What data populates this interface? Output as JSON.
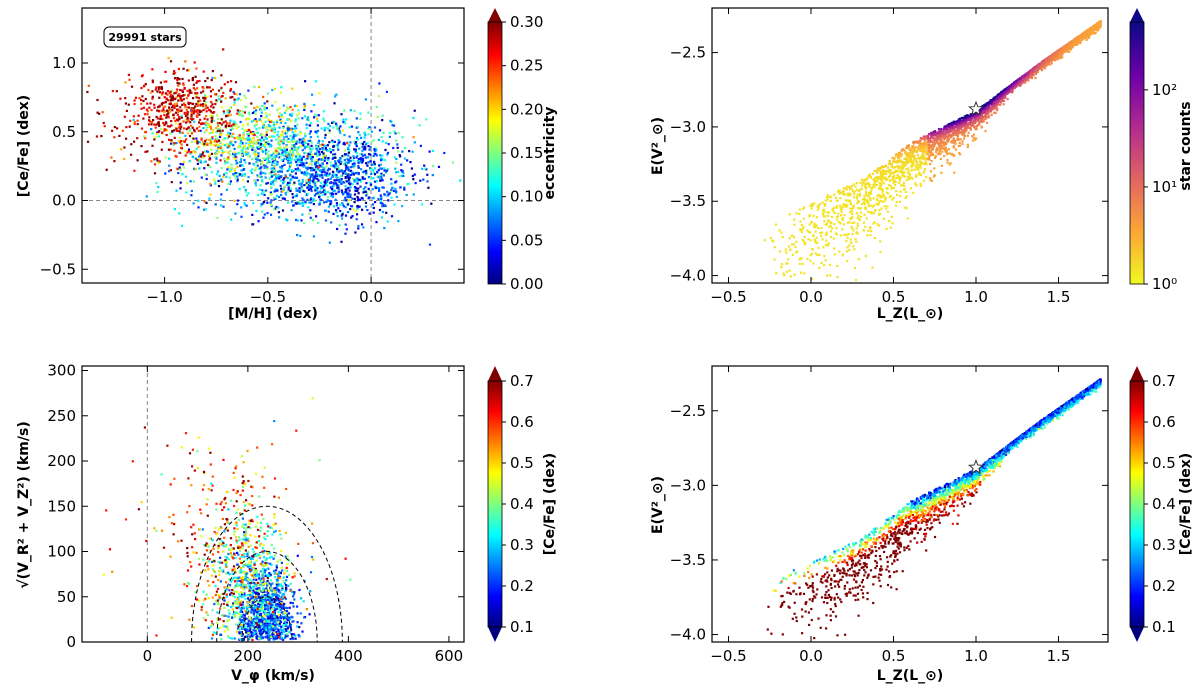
{
  "colors": {
    "jet": [
      "#00007f",
      "#0000ff",
      "#007fff",
      "#00ffff",
      "#7fff7f",
      "#ffff00",
      "#ff7f00",
      "#ff0000",
      "#7f0000"
    ],
    "plasma_r": [
      "#f0f921",
      "#fca636",
      "#e16462",
      "#b12a90",
      "#6a00a8",
      "#0d0887"
    ]
  },
  "chart_data": [
    {
      "id": "p1",
      "type": "scatter",
      "annotation": "29991 stars",
      "xlabel": "[M/H] (dex)",
      "ylabel": "[Ce/Fe] (dex)",
      "xlim": [
        -1.4,
        0.45
      ],
      "ylim": [
        -0.6,
        1.4
      ],
      "xticks": [
        -1.0,
        -0.5,
        0.0
      ],
      "xticklabels": [
        "−1.0",
        "−0.5",
        "0.0"
      ],
      "yticks": [
        -0.5,
        0.0,
        0.5,
        1.0
      ],
      "yticklabels": [
        "−0.5",
        "0.0",
        "0.5",
        "1.0"
      ],
      "reference_lines": {
        "x": 0.0,
        "y": 0.0
      },
      "colorbar": {
        "label": "eccentricity",
        "range": [
          0.0,
          0.3
        ],
        "ticks": [
          "0.00",
          "0.05",
          "0.10",
          "0.15",
          "0.20",
          "0.25",
          "0.30"
        ],
        "colormap": "jet"
      },
      "clusters": [
        {
          "x": -0.35,
          "y": 0.3,
          "sx": 0.28,
          "sy": 0.2,
          "c": 0.09,
          "sc": 0.04,
          "n": 1200
        },
        {
          "x": -0.15,
          "y": 0.15,
          "sx": 0.18,
          "sy": 0.15,
          "c": 0.05,
          "sc": 0.03,
          "n": 500
        },
        {
          "x": -0.6,
          "y": 0.45,
          "sx": 0.18,
          "sy": 0.15,
          "c": 0.16,
          "sc": 0.04,
          "n": 500
        },
        {
          "x": -0.9,
          "y": 0.68,
          "sx": 0.12,
          "sy": 0.14,
          "c": 0.27,
          "sc": 0.03,
          "n": 450
        },
        {
          "x": -1.05,
          "y": 0.55,
          "sx": 0.18,
          "sy": 0.2,
          "c": 0.28,
          "sc": 0.03,
          "n": 120
        }
      ]
    },
    {
      "id": "p2",
      "type": "scatter",
      "xlabel": "L_Z(L_⊙)",
      "ylabel": "E(V²_⊙)",
      "xlim": [
        -0.6,
        1.8
      ],
      "ylim": [
        -4.05,
        -2.2
      ],
      "xticks": [
        -0.5,
        0.0,
        0.5,
        1.0,
        1.5
      ],
      "xticklabels": [
        "−0.5",
        "0.0",
        "0.5",
        "1.0",
        "1.5"
      ],
      "yticks": [
        -4.0,
        -3.5,
        -3.0,
        -2.5
      ],
      "yticklabels": [
        "−4.0",
        "−3.5",
        "−3.0",
        "−2.5"
      ],
      "sun_marker": {
        "x": 1.0,
        "y": -2.88
      },
      "colorbar": {
        "label": "star counts",
        "range": [
          1,
          500
        ],
        "scale": "log",
        "ticks": [
          "10⁰",
          "10¹",
          "10²"
        ],
        "colormap": "plasma_r"
      },
      "envelope": [
        [
          -0.1,
          -3.55
        ],
        [
          0.3,
          -3.35
        ],
        [
          0.6,
          -3.1
        ],
        [
          1.0,
          -2.88
        ],
        [
          1.4,
          -2.55
        ],
        [
          1.75,
          -2.28
        ]
      ]
    },
    {
      "id": "p3",
      "type": "scatter",
      "xlabel": "V_φ (km/s)",
      "ylabel": "√(V_R² + V_Z²) (km/s)",
      "xlim": [
        -130,
        630
      ],
      "ylim": [
        0,
        305
      ],
      "xticks": [
        0,
        200,
        400,
        600
      ],
      "xticklabels": [
        "0",
        "200",
        "400",
        "600"
      ],
      "yticks": [
        0,
        50,
        100,
        150,
        200,
        250,
        300
      ],
      "yticklabels": [
        "0",
        "50",
        "100",
        "150",
        "200",
        "250",
        "300"
      ],
      "reference_lines": {
        "x": 0
      },
      "toomre_circles": {
        "center": 238,
        "radii": [
          50,
          100,
          150
        ]
      },
      "colorbar": {
        "label": "[Ce/Fe] (dex)",
        "range": [
          0.1,
          0.7
        ],
        "ticks": [
          "0.1",
          "0.2",
          "0.3",
          "0.4",
          "0.5",
          "0.6",
          "0.7"
        ],
        "colormap": "jet"
      },
      "clusters": [
        {
          "x": 235,
          "y": 30,
          "sx": 28,
          "sy": 25,
          "c": 0.22,
          "sc": 0.06,
          "n": 900
        },
        {
          "x": 200,
          "y": 65,
          "sx": 40,
          "sy": 35,
          "c": 0.35,
          "sc": 0.08,
          "n": 500
        },
        {
          "x": 170,
          "y": 100,
          "sx": 55,
          "sy": 50,
          "c": 0.55,
          "sc": 0.1,
          "n": 300
        },
        {
          "x": 120,
          "y": 150,
          "sx": 110,
          "sy": 55,
          "c": 0.6,
          "sc": 0.12,
          "n": 80
        }
      ]
    },
    {
      "id": "p4",
      "type": "scatter",
      "xlabel": "L_Z(L_⊙)",
      "ylabel": "E(V²_⊙)",
      "xlim": [
        -0.6,
        1.8
      ],
      "ylim": [
        -4.05,
        -2.2
      ],
      "xticks": [
        -0.5,
        0.0,
        0.5,
        1.0,
        1.5
      ],
      "xticklabels": [
        "−0.5",
        "0.0",
        "0.5",
        "1.0",
        "1.5"
      ],
      "yticks": [
        -4.0,
        -3.5,
        -3.0,
        -2.5
      ],
      "yticklabels": [
        "−4.0",
        "−3.5",
        "−3.0",
        "−2.5"
      ],
      "sun_marker": {
        "x": 1.0,
        "y": -2.88
      },
      "colorbar": {
        "label": "[Ce/Fe] (dex)",
        "range": [
          0.1,
          0.7
        ],
        "ticks": [
          "0.1",
          "0.2",
          "0.3",
          "0.4",
          "0.5",
          "0.6",
          "0.7"
        ],
        "colormap": "jet"
      },
      "envelope": [
        [
          -0.1,
          -3.55
        ],
        [
          0.3,
          -3.35
        ],
        [
          0.6,
          -3.1
        ],
        [
          1.0,
          -2.88
        ],
        [
          1.4,
          -2.55
        ],
        [
          1.75,
          -2.28
        ]
      ]
    }
  ]
}
